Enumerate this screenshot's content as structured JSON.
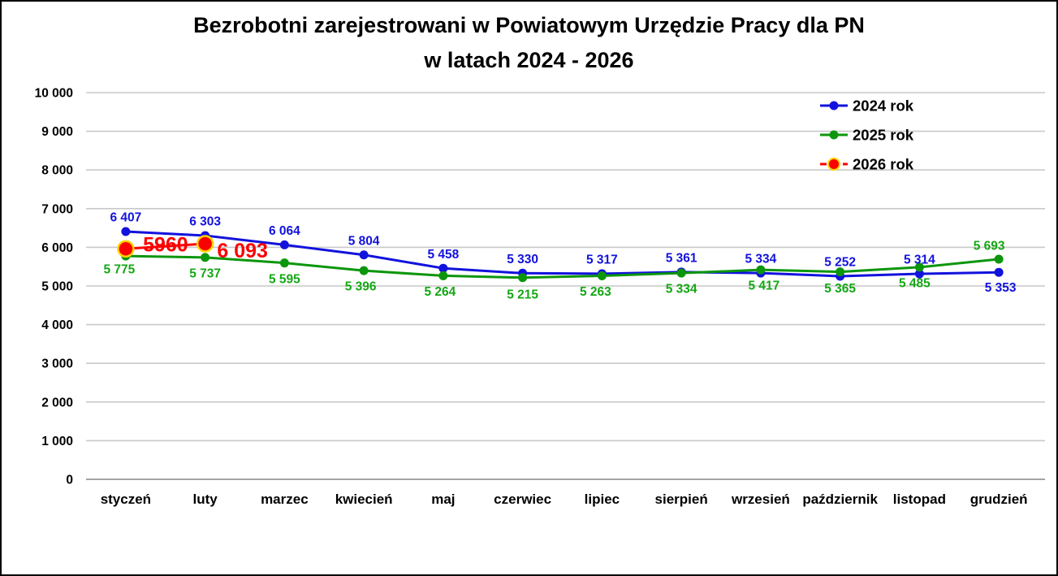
{
  "title": {
    "line1": "Bezrobotni zarejestrowani w Powiatowym Urzędzie Pracy dla PN",
    "line2": "w latach 2024 - 2026"
  },
  "colors": {
    "background": "#ffffff",
    "border": "#000000",
    "gridline": "#c9c9c9",
    "zero_axis": "#a3a3a3",
    "text": "#000000",
    "series_2024": "#1212dd",
    "series_2025": "#0c960c",
    "label_2025": "#14a714",
    "series_2026": "#fb0000",
    "marker_ring_2026": "#ffd400"
  },
  "chart_data": {
    "type": "line",
    "title": "Bezrobotni zarejestrowani w Powiatowym Urzędzie Pracy dla PN w latach 2024 - 2026",
    "categories": [
      "styczeń",
      "luty",
      "marzec",
      "kwiecień",
      "maj",
      "czerwiec",
      "lipiec",
      "sierpień",
      "wrzesień",
      "październik",
      "listopad",
      "grudzień"
    ],
    "y_axis": {
      "min": 0,
      "max": 10000,
      "step": 1000,
      "tick_labels": [
        "0",
        "1 000",
        "2 000",
        "3 000",
        "4 000",
        "5 000",
        "6 000",
        "7 000",
        "8 000",
        "9 000",
        "10 000"
      ]
    },
    "grid": true,
    "legend_position": "top-right",
    "series": [
      {
        "name": "2024 rok",
        "color": "#1212dd",
        "label_color": "#1212dd",
        "line_style": "solid",
        "marker_radius": 5.5,
        "values": [
          6407,
          6303,
          6064,
          5804,
          5458,
          5330,
          5317,
          5361,
          5334,
          5252,
          5314,
          5353
        ],
        "labels": [
          "6 407",
          "6 303",
          "6 064",
          "5 804",
          "5 458",
          "5 330",
          "5 317",
          "5 361",
          "5 334",
          "5 252",
          "5 314",
          "5 353"
        ],
        "label_offsets": [
          [
            0,
            -18
          ],
          [
            0,
            -18
          ],
          [
            0,
            -18
          ],
          [
            0,
            -18
          ],
          [
            0,
            -18
          ],
          [
            0,
            -18
          ],
          [
            0,
            -18
          ],
          [
            0,
            -18
          ],
          [
            0,
            -18
          ],
          [
            0,
            -18
          ],
          [
            0,
            -18
          ],
          [
            2,
            18
          ]
        ]
      },
      {
        "name": "2025 rok",
        "color": "#0c960c",
        "label_color": "#14a714",
        "line_style": "solid",
        "marker_radius": 5.5,
        "values": [
          5775,
          5737,
          5595,
          5396,
          5264,
          5215,
          5263,
          5334,
          5417,
          5365,
          5485,
          5693
        ],
        "labels": [
          "5 775",
          "5 737",
          "5 595",
          "5 396",
          "5 264",
          "5 215",
          "5 263",
          "5 334",
          "5 417",
          "5 365",
          "5 485",
          "5 693"
        ],
        "label_offsets": [
          [
            -8,
            16
          ],
          [
            0,
            19
          ],
          [
            0,
            19
          ],
          [
            -4,
            19
          ],
          [
            -4,
            19
          ],
          [
            0,
            20
          ],
          [
            -8,
            19
          ],
          [
            0,
            19
          ],
          [
            4,
            19
          ],
          [
            0,
            20
          ],
          [
            -6,
            19
          ],
          [
            -12,
            -17
          ]
        ]
      },
      {
        "name": "2026 rok",
        "color": "#fb0000",
        "label_color": "#fb0000",
        "line_style": "dashed-legend",
        "marker_radius": 9.5,
        "marker_ring": "#ffd400",
        "values": [
          5960,
          6093,
          null,
          null,
          null,
          null,
          null,
          null,
          null,
          null,
          null,
          null
        ],
        "labels": [
          "5960",
          "6 093",
          null,
          null,
          null,
          null,
          null,
          null,
          null,
          null,
          null,
          null
        ],
        "label_offsets": [
          [
            49,
            -6
          ],
          [
            46,
            8
          ],
          null,
          null,
          null,
          null,
          null,
          null,
          null,
          null,
          null,
          null
        ],
        "label_font_size": 25
      }
    ]
  },
  "legend": {
    "items": [
      {
        "label": "2024 rok"
      },
      {
        "label": "2025 rok"
      },
      {
        "label": "2026 rok"
      }
    ]
  }
}
